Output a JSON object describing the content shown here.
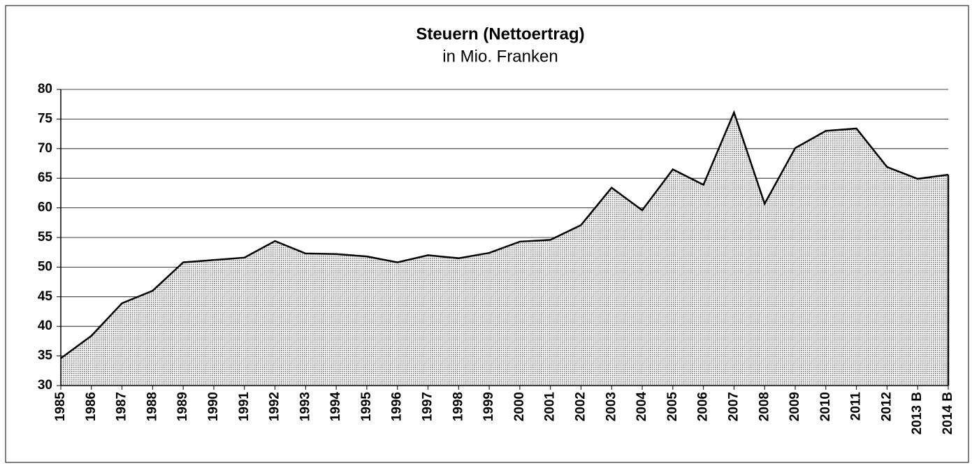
{
  "chart_data": {
    "type": "area",
    "title": "Steuern (Nettoertrag)",
    "subtitle": "in Mio. Franken",
    "categories": [
      "1985",
      "1986",
      "1987",
      "1988",
      "1989",
      "1990",
      "1991",
      "1992",
      "1993",
      "1994",
      "1995",
      "1996",
      "1997",
      "1998",
      "1999",
      "2000",
      "2001",
      "2002",
      "2003",
      "2004",
      "2005",
      "2006",
      "2007",
      "2008",
      "2009",
      "2010",
      "2011",
      "2012",
      "2013 B",
      "2014 B"
    ],
    "values": [
      34.6,
      38.4,
      43.9,
      46.0,
      50.8,
      51.2,
      51.6,
      54.4,
      52.3,
      52.2,
      51.8,
      50.8,
      52.0,
      51.5,
      52.4,
      54.3,
      54.6,
      57.1,
      63.4,
      59.6,
      66.5,
      63.9,
      76.1,
      60.7,
      70.1,
      73.0,
      73.4,
      66.9,
      64.9,
      65.6
    ],
    "color": "#777777",
    "ylim": [
      30,
      80
    ],
    "yticks": [
      30,
      35,
      40,
      45,
      50,
      55,
      60,
      65,
      70,
      75,
      80
    ],
    "grid": true
  }
}
